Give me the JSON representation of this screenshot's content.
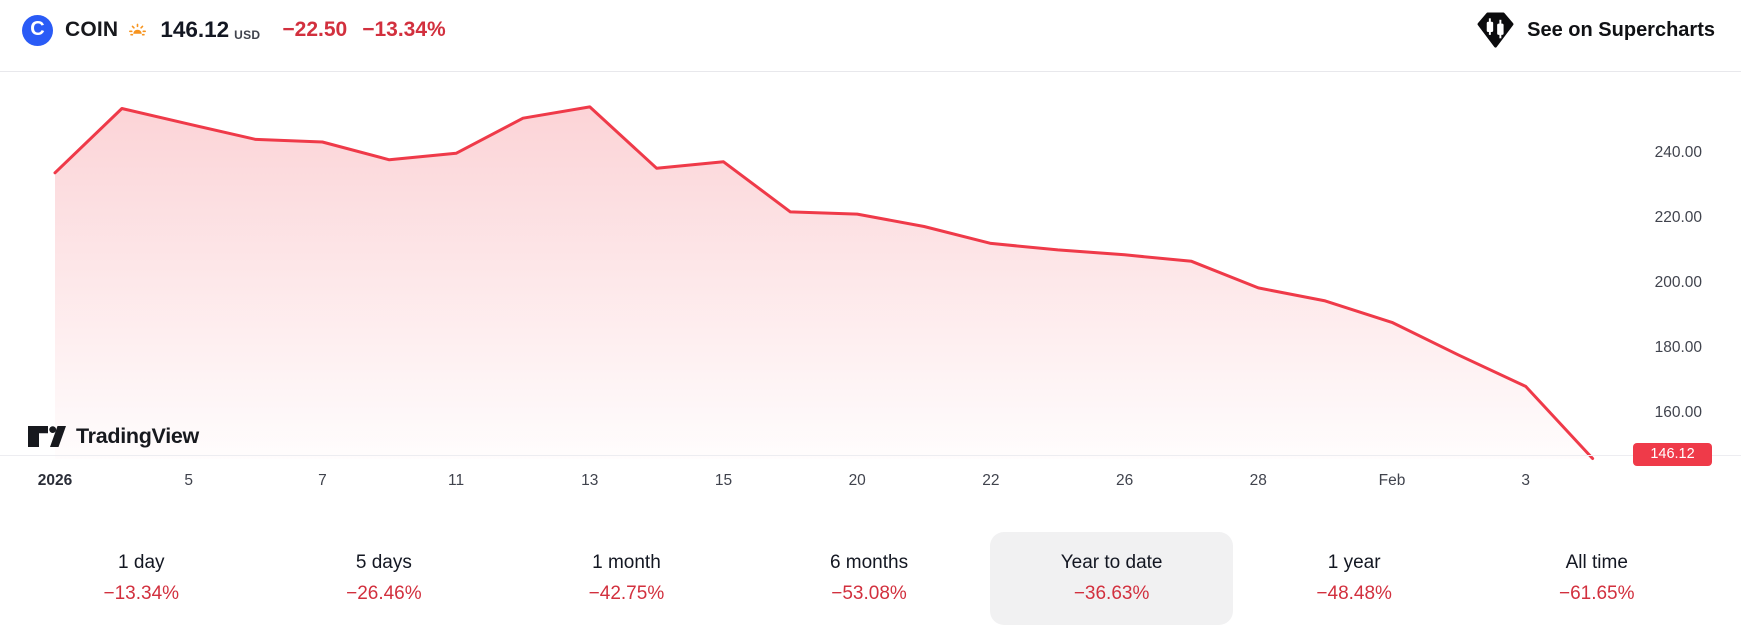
{
  "header": {
    "logo_letter": "C",
    "symbol": "COIN",
    "price": "146.12",
    "currency": "USD",
    "change": "−22.50",
    "change_pct": "−13.34%",
    "market_status_icon": "sunrise-icon",
    "supercharts_label": "See on Supercharts"
  },
  "watermark": "TradingView",
  "colors": {
    "accent_blue": "#2a5bf6",
    "negative_text": "#d2303e",
    "line_red": "#ef3a49",
    "area_top": "rgba(239,58,73,0.24)",
    "pill_bg": "#f1f1f2",
    "axis_text": "#40434d",
    "sun_orange": "#f7941e",
    "separator": "#e8e8ec"
  },
  "chart_data": {
    "type": "area",
    "title": "COIN price, year to date",
    "legend": "none",
    "grid": false,
    "y_axis_position": "right",
    "x_ticks": [
      {
        "i": 0,
        "label": "2026",
        "bold": true
      },
      {
        "i": 2,
        "label": "5"
      },
      {
        "i": 4,
        "label": "7"
      },
      {
        "i": 6,
        "label": "11"
      },
      {
        "i": 8,
        "label": "13"
      },
      {
        "i": 10,
        "label": "15"
      },
      {
        "i": 12,
        "label": "20"
      },
      {
        "i": 14,
        "label": "22"
      },
      {
        "i": 16,
        "label": "26"
      },
      {
        "i": 18,
        "label": "28"
      },
      {
        "i": 20,
        "label": "Feb"
      },
      {
        "i": 22,
        "label": "3"
      }
    ],
    "values": [
      234.0,
      253.8,
      249.0,
      244.3,
      243.5,
      238.0,
      240.0,
      250.8,
      254.3,
      235.4,
      237.4,
      222.0,
      221.3,
      217.5,
      212.3,
      210.3,
      208.8,
      206.8,
      198.6,
      194.6,
      188.0,
      177.9,
      168.3,
      146.12
    ],
    "last_price": 146.12,
    "last_price_label": "146.12",
    "y_ticks": [
      {
        "value": 240,
        "label": "240.00"
      },
      {
        "value": 220,
        "label": "220.00"
      },
      {
        "value": 200,
        "label": "200.00"
      },
      {
        "value": 180,
        "label": "180.00"
      },
      {
        "value": 160,
        "label": "160.00"
      }
    ],
    "ylim": [
      147.2,
      264.1
    ],
    "line_color": "#ef3a49",
    "area_top_color": "rgba(239,58,73,0.24)"
  },
  "tabs": [
    {
      "label": "1 day",
      "change": "−13.34%",
      "selected": false
    },
    {
      "label": "5 days",
      "change": "−26.46%",
      "selected": false
    },
    {
      "label": "1 month",
      "change": "−42.75%",
      "selected": false
    },
    {
      "label": "6 months",
      "change": "−53.08%",
      "selected": false
    },
    {
      "label": "Year to date",
      "change": "−36.63%",
      "selected": true
    },
    {
      "label": "1 year",
      "change": "−48.48%",
      "selected": false
    },
    {
      "label": "All time",
      "change": "−61.65%",
      "selected": false
    }
  ]
}
